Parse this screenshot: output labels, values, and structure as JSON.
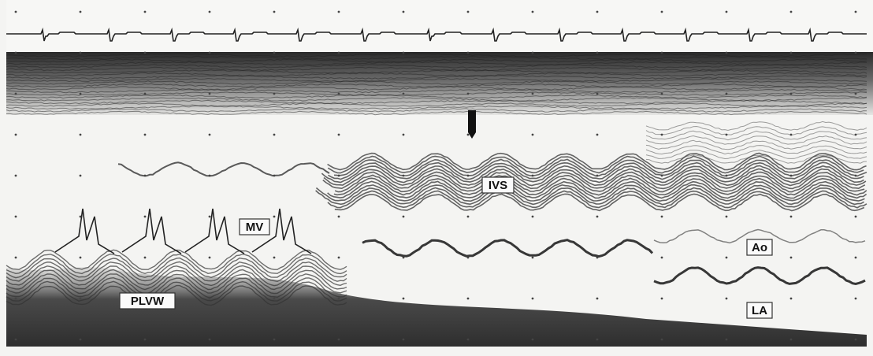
{
  "labels": [
    "MV",
    "IVS",
    "PLVW",
    "Ao",
    "LA"
  ]
}
